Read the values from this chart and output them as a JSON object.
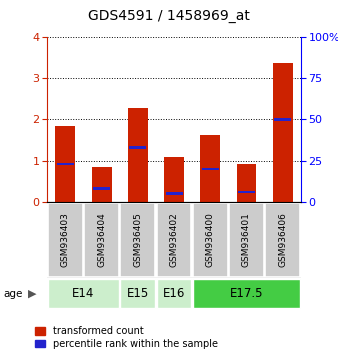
{
  "title": "GDS4591 / 1458969_at",
  "samples": [
    "GSM936403",
    "GSM936404",
    "GSM936405",
    "GSM936402",
    "GSM936400",
    "GSM936401",
    "GSM936406"
  ],
  "transformed_counts": [
    1.85,
    0.85,
    2.27,
    1.08,
    1.62,
    0.93,
    3.37
  ],
  "percentile_ranks": [
    23,
    8,
    33,
    5,
    20,
    6,
    50
  ],
  "age_groups": [
    {
      "label": "E14",
      "samples": [
        0,
        1
      ],
      "color": "#cceecc"
    },
    {
      "label": "E15",
      "samples": [
        2
      ],
      "color": "#cceecc"
    },
    {
      "label": "E16",
      "samples": [
        3
      ],
      "color": "#cceecc"
    },
    {
      "label": "E17.5",
      "samples": [
        4,
        5,
        6
      ],
      "color": "#44cc44"
    }
  ],
  "bar_color_red": "#cc2200",
  "bar_color_blue": "#2222cc",
  "bar_width": 0.55,
  "ylim_left": [
    0,
    4
  ],
  "ylim_right": [
    0,
    100
  ],
  "yticks_left": [
    0,
    1,
    2,
    3,
    4
  ],
  "yticks_right": [
    0,
    25,
    50,
    75,
    100
  ],
  "background_color": "#ffffff",
  "plot_bg": "#ffffff",
  "age_label": "age",
  "legend_red": "transformed count",
  "legend_blue": "percentile rank within the sample",
  "title_fontsize": 10,
  "tick_fontsize": 8,
  "sample_label_fontsize": 6.5,
  "age_fontsize": 8.5,
  "legend_fontsize": 7
}
